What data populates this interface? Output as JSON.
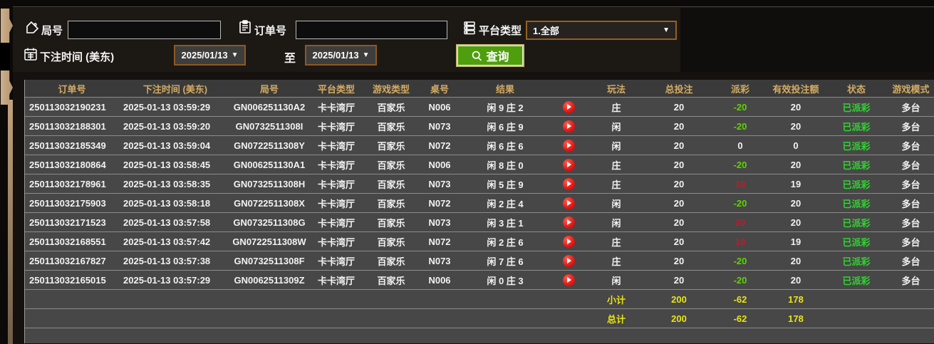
{
  "filters": {
    "game_no": {
      "label": "局号",
      "value": "",
      "icon": "tag-icon"
    },
    "order_no": {
      "label": "订单号",
      "value": "",
      "icon": "clipboard-icon"
    },
    "platform": {
      "label": "平台类型",
      "value": "1.全部",
      "arrow": "▼",
      "icon": "server-icon"
    },
    "bet_time": {
      "label": "下注时间 (美东)",
      "to_label": "至",
      "date_from": "2025/01/13",
      "date_to": "2025/01/13",
      "arrow": "▼",
      "icon": "calendar-icon"
    },
    "search": {
      "label": "查询",
      "icon": "magnifier-icon"
    }
  },
  "table": {
    "headers": [
      "订单号",
      "下注时间 (美东)",
      "局号",
      "平台类型",
      "游戏类型",
      "桌号",
      "结果",
      "",
      "玩法",
      "总投注",
      "派彩",
      "有效投注额",
      "状态",
      "游戏模式"
    ],
    "rows": [
      {
        "order": "250113032190231",
        "time": "2025-01-13 03:59:29",
        "game_no": "GN006251130A2",
        "platform": "卡卡湾厅",
        "game_type": "百家乐",
        "table_no": "N006",
        "result": "闲 9 庄 2",
        "bet_type": "庄",
        "total_bet": "20",
        "payout": "-20",
        "payout_sign": "neg",
        "valid_bet": "20",
        "status": "已派彩",
        "mode": "多台"
      },
      {
        "order": "250113032188301",
        "time": "2025-01-13 03:59:20",
        "game_no": "GN0732511308I",
        "platform": "卡卡湾厅",
        "game_type": "百家乐",
        "table_no": "N073",
        "result": "闲 6 庄 9",
        "bet_type": "闲",
        "total_bet": "20",
        "payout": "-20",
        "payout_sign": "neg",
        "valid_bet": "20",
        "status": "已派彩",
        "mode": "多台"
      },
      {
        "order": "250113032185349",
        "time": "2025-01-13 03:59:04",
        "game_no": "GN0722511308Y",
        "platform": "卡卡湾厅",
        "game_type": "百家乐",
        "table_no": "N072",
        "result": "闲 6 庄 6",
        "bet_type": "闲",
        "total_bet": "20",
        "payout": "0",
        "payout_sign": "zero",
        "valid_bet": "0",
        "status": "已派彩",
        "mode": "多台"
      },
      {
        "order": "250113032180864",
        "time": "2025-01-13 03:58:45",
        "game_no": "GN006251130A1",
        "platform": "卡卡湾厅",
        "game_type": "百家乐",
        "table_no": "N006",
        "result": "闲 8 庄 0",
        "bet_type": "庄",
        "total_bet": "20",
        "payout": "-20",
        "payout_sign": "neg",
        "valid_bet": "20",
        "status": "已派彩",
        "mode": "多台"
      },
      {
        "order": "250113032178961",
        "time": "2025-01-13 03:58:35",
        "game_no": "GN0732511308H",
        "platform": "卡卡湾厅",
        "game_type": "百家乐",
        "table_no": "N073",
        "result": "闲 5 庄 9",
        "bet_type": "庄",
        "total_bet": "20",
        "payout": "19",
        "payout_sign": "pos",
        "valid_bet": "19",
        "status": "已派彩",
        "mode": "多台"
      },
      {
        "order": "250113032175903",
        "time": "2025-01-13 03:58:18",
        "game_no": "GN0722511308X",
        "platform": "卡卡湾厅",
        "game_type": "百家乐",
        "table_no": "N072",
        "result": "闲 2 庄 4",
        "bet_type": "闲",
        "total_bet": "20",
        "payout": "-20",
        "payout_sign": "neg",
        "valid_bet": "20",
        "status": "已派彩",
        "mode": "多台"
      },
      {
        "order": "250113032171523",
        "time": "2025-01-13 03:57:58",
        "game_no": "GN0732511308G",
        "platform": "卡卡湾厅",
        "game_type": "百家乐",
        "table_no": "N073",
        "result": "闲 3 庄 1",
        "bet_type": "闲",
        "total_bet": "20",
        "payout": "20",
        "payout_sign": "pos",
        "valid_bet": "20",
        "status": "已派彩",
        "mode": "多台"
      },
      {
        "order": "250113032168551",
        "time": "2025-01-13 03:57:42",
        "game_no": "GN0722511308W",
        "platform": "卡卡湾厅",
        "game_type": "百家乐",
        "table_no": "N072",
        "result": "闲 2 庄 6",
        "bet_type": "庄",
        "total_bet": "20",
        "payout": "19",
        "payout_sign": "pos",
        "valid_bet": "19",
        "status": "已派彩",
        "mode": "多台"
      },
      {
        "order": "250113032167827",
        "time": "2025-01-13 03:57:38",
        "game_no": "GN0732511308F",
        "platform": "卡卡湾厅",
        "game_type": "百家乐",
        "table_no": "N073",
        "result": "闲 7 庄 6",
        "bet_type": "庄",
        "total_bet": "20",
        "payout": "-20",
        "payout_sign": "neg",
        "valid_bet": "20",
        "status": "已派彩",
        "mode": "多台"
      },
      {
        "order": "250113032165015",
        "time": "2025-01-13 03:57:29",
        "game_no": "GN0062511309Z",
        "platform": "卡卡湾厅",
        "game_type": "百家乐",
        "table_no": "N006",
        "result": "闲 0 庄 3",
        "bet_type": "闲",
        "total_bet": "20",
        "payout": "-20",
        "payout_sign": "neg",
        "valid_bet": "20",
        "status": "已派彩",
        "mode": "多台"
      }
    ],
    "subtotal": {
      "label": "小计",
      "total_bet": "200",
      "payout": "-62",
      "valid_bet": "178"
    },
    "total": {
      "label": "总计",
      "total_bet": "200",
      "payout": "-62",
      "valid_bet": "178"
    }
  },
  "colors": {
    "header_text": "#d4ab63",
    "payout_negative": "#5fd400",
    "payout_positive": "#b3202e",
    "status_paid": "#2ed52e",
    "summary_yellow": "#e9e414",
    "search_button_green": "#4f9e0e",
    "select_border_brown": "#8d5a20"
  }
}
